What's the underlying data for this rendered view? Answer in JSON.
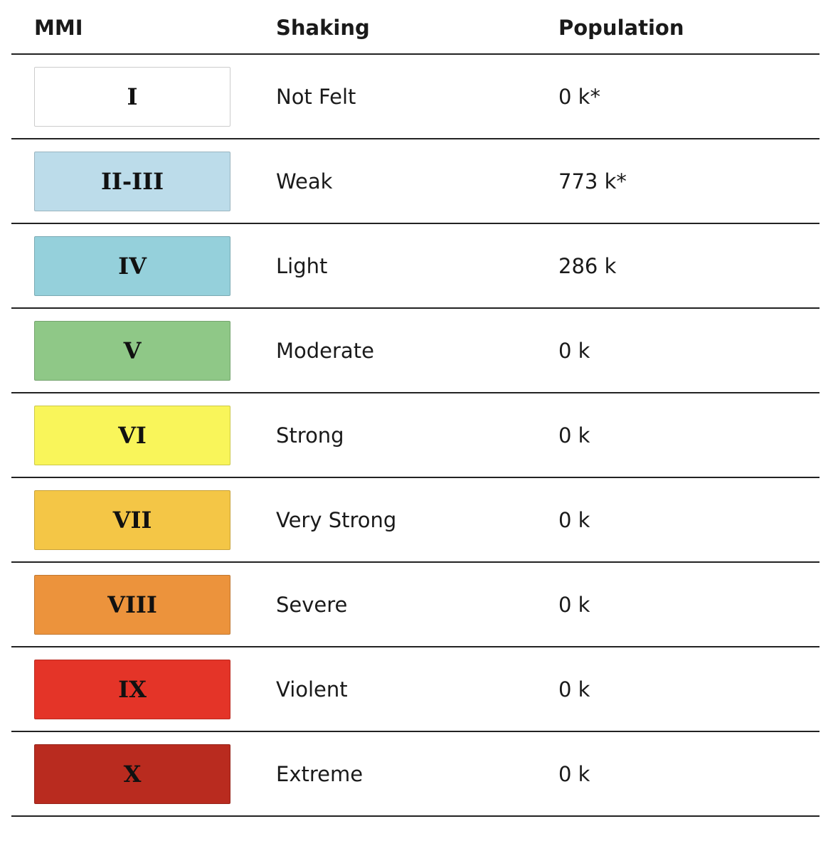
{
  "table": {
    "header": [
      "MMI",
      "Shaking",
      "Population"
    ],
    "rows": [
      [
        "I",
        "Not Felt",
        "0 k*"
      ],
      [
        "II-III",
        "Weak",
        "773 k*"
      ],
      [
        "IV",
        "Light",
        "286 k"
      ],
      [
        "V",
        "Moderate",
        "0 k"
      ],
      [
        "VI",
        "Strong",
        "0 k"
      ],
      [
        "VII",
        "Very Strong",
        "0 k"
      ],
      [
        "VIII",
        "Severe",
        "0 k"
      ],
      [
        "IX",
        "Violent",
        "0 k"
      ],
      [
        "X",
        "Extreme",
        "0 k"
      ]
    ]
  }
}
